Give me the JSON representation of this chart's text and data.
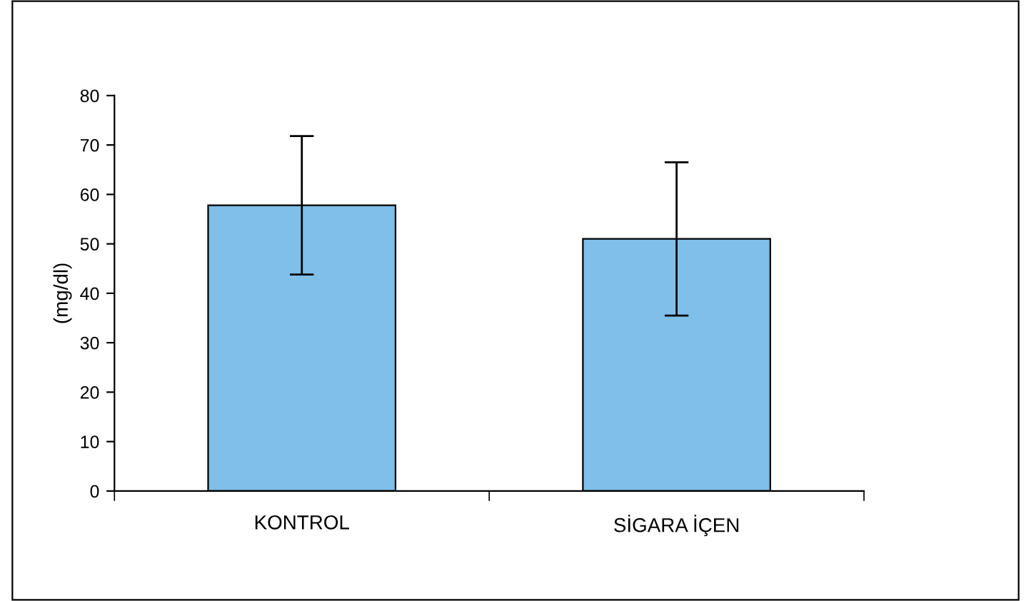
{
  "chart_data": {
    "type": "bar",
    "ylabel": "(mg/dl)",
    "categories": [
      "KONTROL",
      "SİGARA İÇEN"
    ],
    "values": [
      57.8,
      51
    ],
    "errors": [
      14,
      15.5
    ],
    "color": "#7fbfe8",
    "ylim": [
      0,
      80
    ],
    "yticks": [
      0,
      10,
      20,
      30,
      40,
      50,
      60,
      70,
      80
    ],
    "grid": false
  }
}
